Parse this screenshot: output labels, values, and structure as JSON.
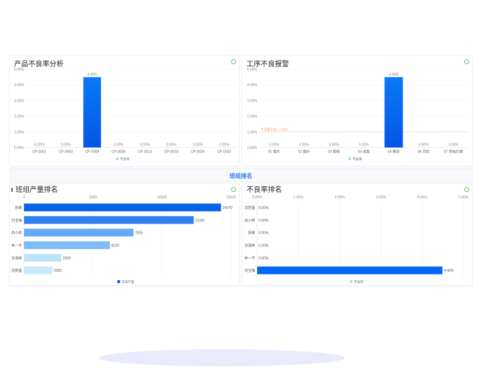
{
  "section": {
    "title": "班组排名"
  },
  "panels": {
    "p1": {
      "title": "产品不良率分析",
      "info_icon": "info-icon"
    },
    "p2": {
      "title": "工序不良报警",
      "info_icon": "info-icon"
    },
    "p3": {
      "title": "班组产量排名",
      "info_icon": "info-icon"
    },
    "p4": {
      "title": "不良率排名",
      "info_icon": "info-icon"
    }
  },
  "colors": {
    "primary": "#0466f0",
    "gradient_top": "#0a79f6",
    "gradient_bottom": "#0456e8",
    "grid": "#f0f0f0",
    "axis_text": "#888888",
    "warning": "#f5a46a",
    "legend_light": "#a6dcf5",
    "section_text": "#2b7bea"
  },
  "chart_data": [
    {
      "type": "bar",
      "categories": [
        "CP-0001",
        "CP-0003",
        "CP-0006",
        "CP-0009",
        "CP-0013",
        "CP-0019",
        "CP-0026",
        "CP-0032"
      ],
      "series": [
        {
          "name": "不良率",
          "values": [
            0,
            0,
            4.49,
            0,
            0,
            0,
            0,
            0
          ]
        }
      ],
      "labels": [
        "0.00%",
        "0.00%",
        "4.49%",
        "0.00%",
        "0.00%",
        "0.00%",
        "0.00%",
        "0.00%"
      ],
      "yticks": [
        "0.00%",
        "1.00%",
        "2.00%",
        "3.00%",
        "4.00%",
        "5.00%"
      ],
      "ylim": [
        0,
        5
      ],
      "legend": "bottom-center",
      "grid": true
    },
    {
      "type": "bar",
      "categories": [
        "01 裁片",
        "02 翻头",
        "03 粗修",
        "04 成型",
        "05 精涂",
        "06 完检",
        "07 熨帖打磨"
      ],
      "series": [
        {
          "name": "不良率",
          "values": [
            0,
            0,
            0,
            0,
            4.49,
            0,
            0
          ]
        }
      ],
      "labels": [
        "0.00%",
        "0.00%",
        "0.00%",
        "0.00%",
        "4.49%",
        "0.00%",
        "0.00%"
      ],
      "yticks": [
        "0.00%",
        "1.00%",
        "2.00%",
        "3.00%",
        "4.00%",
        "5.00%"
      ],
      "ylim": [
        0,
        5
      ],
      "threshold": {
        "value": 1.0,
        "label": "不良警告线 : 1.00%"
      },
      "legend": "bottom-center",
      "grid": true
    },
    {
      "type": "bar",
      "orientation": "horizontal",
      "categories": [
        "张峰",
        "刘玉梅",
        "尚小燕",
        "单一平",
        "沈海林",
        "沈凯猛"
      ],
      "series": [
        {
          "name": "实际产量",
          "values": [
            14270,
            12301,
            7926,
            6220,
            2699,
            2055
          ]
        }
      ],
      "xticks": [
        "0",
        "5000",
        "10000",
        "15000"
      ],
      "xlim": [
        0,
        15000
      ],
      "legend": "bottom-center",
      "grid": true
    },
    {
      "type": "bar",
      "orientation": "horizontal",
      "categories": [
        "沈凯猛",
        "尚小燕",
        "张峰",
        "沈海林",
        "单一平",
        "刘玉梅"
      ],
      "series": [
        {
          "name": "不良率",
          "values": [
            0,
            0,
            0,
            0,
            0,
            4.49
          ]
        }
      ],
      "labels": [
        "0.00%",
        "0.00%",
        "0.00%",
        "0.00%",
        "0.00%",
        "4.49%"
      ],
      "xticks": [
        "0.00%",
        "1.00%",
        "2.00%",
        "3.00%",
        "4.00%",
        "5.00%"
      ],
      "xlim": [
        0,
        5
      ],
      "legend": "bottom-center",
      "grid": true
    }
  ]
}
